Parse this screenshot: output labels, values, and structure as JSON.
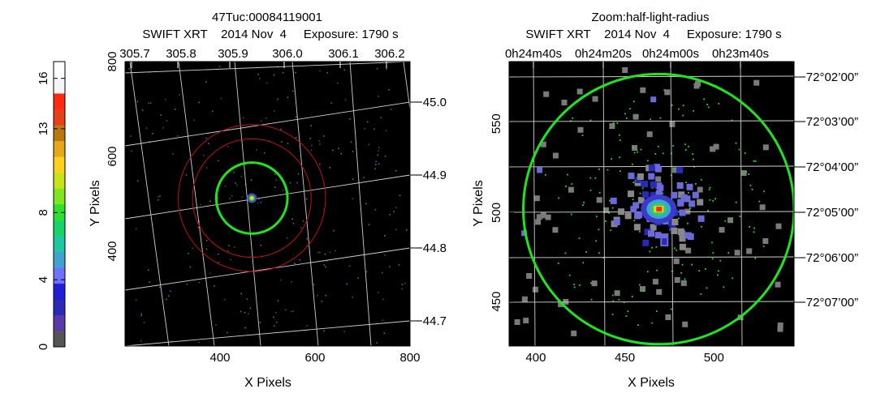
{
  "colorbar": {
    "ticks": [
      "0",
      "4",
      "8",
      "13",
      "16"
    ],
    "colors": [
      "#555555",
      "#5b3aa8",
      "#2a2ab8",
      "#1f1fd8",
      "#7070ff",
      "#3fa3d0",
      "#1ec7a0",
      "#18d36a",
      "#2ee02e",
      "#7ee61e",
      "#c8e21a",
      "#ffd21a",
      "#e6a818",
      "#b9780f",
      "#e6401a",
      "#ff2a10",
      "#f5f5f5",
      "#ffffff"
    ]
  },
  "chart_data": [
    {
      "type": "heatmap",
      "title": "47Tuc:00084119001",
      "subtitle": "SWIFT XRT    2014 Nov  4     Exposure: 1790 s",
      "xlabel": "X Pixels",
      "ylabel": "Y Pixels",
      "xlim": [
        200,
        800
      ],
      "ylim": [
        200,
        800
      ],
      "x_ticks": [
        "400",
        "600",
        "800"
      ],
      "y_ticks": [
        "400",
        "600",
        "800"
      ],
      "top_ticks": [
        "305.7",
        "305.8",
        "305.9",
        "306.0",
        "306.1",
        "306.2"
      ],
      "right_ticks": [
        "−45.0",
        "−44.9",
        "−44.8",
        "−44.7"
      ],
      "grid": true,
      "source": {
        "x": 467,
        "y": 512
      },
      "circles": [
        {
          "label": "outer-red",
          "radius": 155,
          "color": "#b21010"
        },
        {
          "label": "inner-red",
          "radius": 125,
          "color": "#b21010"
        },
        {
          "label": "green",
          "radius": 75,
          "color": "#1ee61e"
        }
      ]
    },
    {
      "type": "heatmap",
      "title": "Zoom:half-light-radius",
      "subtitle": "SWIFT XRT    2014 Nov  4     Exposure: 1790 s",
      "xlabel": "X Pixels",
      "ylabel": "Y Pixels",
      "xlim": [
        385,
        545
      ],
      "ylim": [
        425,
        585
      ],
      "x_ticks": [
        "400",
        "450",
        "500"
      ],
      "y_ticks": [
        "450",
        "500",
        "550"
      ],
      "top_ticks": [
        "0h24m40s",
        "0h24m20s",
        "0h24m00s",
        "0h23m40s"
      ],
      "right_ticks": [
        "−72°02’00”",
        "−72°03’00”",
        "−72°04’00”",
        "−72°05’00”",
        "−72°06’00”",
        "−72°07’00”"
      ],
      "grid": true,
      "source": {
        "x": 469,
        "y": 502
      },
      "circles": [
        {
          "label": "half-light-radius",
          "radius": 76,
          "color": "#1ee61e"
        }
      ]
    }
  ]
}
